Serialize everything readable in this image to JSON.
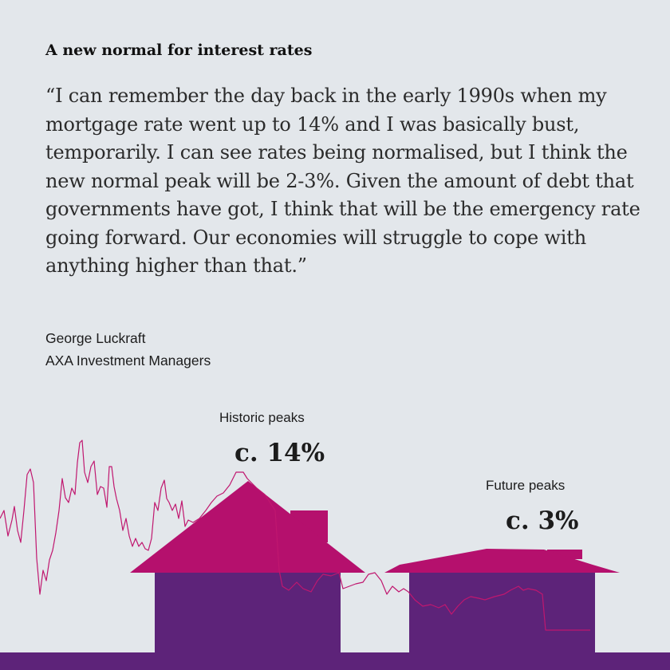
{
  "headline": "A new normal for interest rates",
  "quote": "“I can remember the day back in the early 1990s when my mortgage rate went up to 14% and I was basically bust, temporarily. I can see rates being normalised, but I think the new normal peak will be 2-3%. Given the amount of debt that governments have got, I think that will be the emergency rate going forward. Our economies will struggle to cope with anything higher than that.”",
  "author": {
    "name": "George Luckraft",
    "company": "AXA Investment Managers"
  },
  "illustration": {
    "historic_label": "Historic peaks",
    "historic_value": "c. 14%",
    "future_label": "Future peaks",
    "future_value": "c. 3%"
  },
  "colors": {
    "background": "#e3e7eb",
    "roof": "#b5106d",
    "house_body": "#5d2379",
    "rate_line": "#c0176f"
  }
}
